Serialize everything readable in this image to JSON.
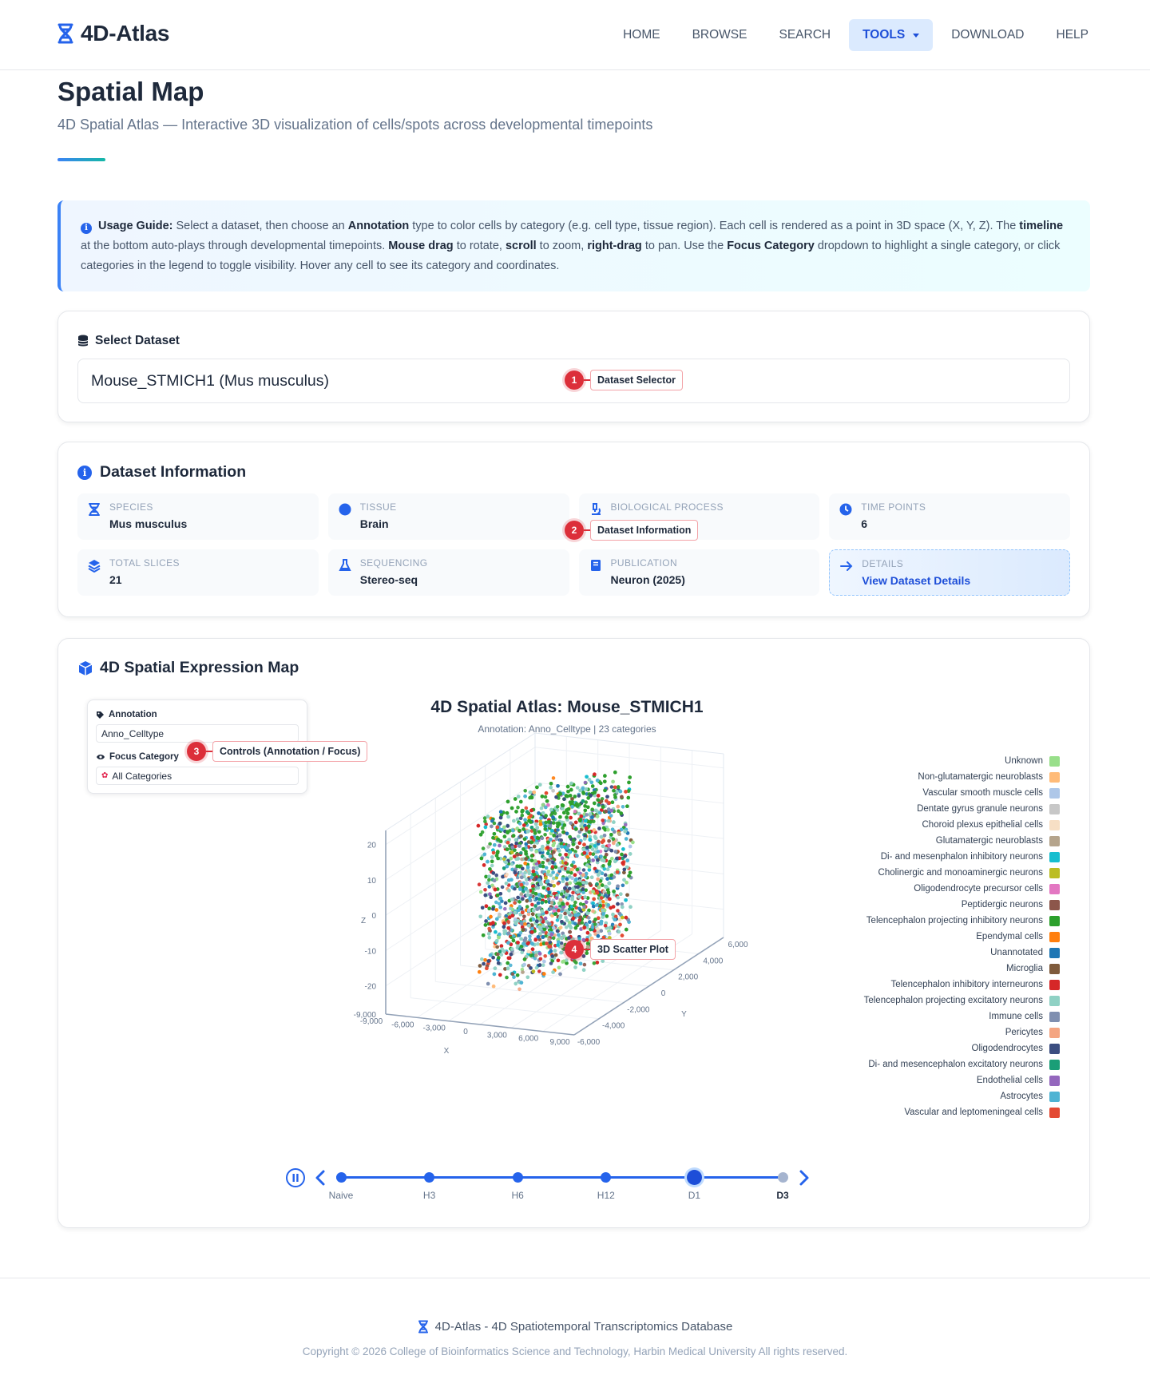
{
  "nav": {
    "brand": "4D-Atlas",
    "links": [
      {
        "label": "HOME"
      },
      {
        "label": "BROWSE"
      },
      {
        "label": "SEARCH"
      },
      {
        "label": "TOOLS",
        "active": true
      },
      {
        "label": "DOWNLOAD"
      },
      {
        "label": "HELP"
      }
    ]
  },
  "header": {
    "title": "Spatial Map",
    "subtitle": "4D Spatial Atlas — Interactive 3D visualization of cells/spots across developmental timepoints"
  },
  "guide": {
    "parts": [
      {
        "t": "Usage Guide:",
        "b": true
      },
      {
        "t": " Select a dataset, then choose an "
      },
      {
        "t": "Annotation",
        "b": true
      },
      {
        "t": " type to color cells by category (e.g. cell type, tissue region). Each cell is rendered as a point in 3D space (X, Y, Z). The "
      },
      {
        "t": "timeline",
        "b": true
      },
      {
        "t": " at the bottom auto-plays through developmental timepoints. "
      },
      {
        "t": "Mouse drag",
        "b": true
      },
      {
        "t": " to rotate, "
      },
      {
        "t": "scroll",
        "b": true
      },
      {
        "t": " to zoom, "
      },
      {
        "t": "right-drag",
        "b": true
      },
      {
        "t": " to pan. Use the "
      },
      {
        "t": "Focus Category",
        "b": true
      },
      {
        "t": " dropdown to highlight a single category, or click categories in the legend to toggle visibility. Hover any cell to see its category and coordinates."
      }
    ]
  },
  "select_dataset": {
    "title": "Select Dataset",
    "value": "Mouse_STMICH1 (Mus musculus)"
  },
  "dataset_info": {
    "title": "Dataset Information",
    "items": [
      {
        "label": "SPECIES",
        "value": "Mus musculus",
        "icon": "dna-icon"
      },
      {
        "label": "TISSUE",
        "value": "Brain",
        "icon": "brain-icon"
      },
      {
        "label": "BIOLOGICAL PROCESS",
        "value": "",
        "icon": "microscope-icon"
      },
      {
        "label": "TIME POINTS",
        "value": "6",
        "icon": "clock-icon"
      },
      {
        "label": "TOTAL SLICES",
        "value": "21",
        "icon": "layers-icon"
      },
      {
        "label": "SEQUENCING",
        "value": "Stereo-seq",
        "icon": "flask-icon"
      },
      {
        "label": "PUBLICATION",
        "value": "Neuron (2025)",
        "icon": "book-icon"
      },
      {
        "label": "DETAILS",
        "value": "View Dataset Details",
        "icon": "arrow-right-icon"
      }
    ]
  },
  "map": {
    "title": "4D Spatial Expression Map",
    "controls": {
      "annotation_label": "Annotation",
      "annotation_value": "Anno_Celltype",
      "focus_label": "Focus Category",
      "focus_value": "All Categories"
    }
  },
  "callouts": [
    {
      "num": "1",
      "label": "Dataset Selector"
    },
    {
      "num": "2",
      "label": "Dataset Information"
    },
    {
      "num": "3",
      "label": "Controls (Annotation / Focus)"
    },
    {
      "num": "4",
      "label": "3D Scatter Plot"
    }
  ],
  "chart_data": {
    "type": "scatter",
    "dimensions": 3,
    "title": "4D Spatial Atlas: Mouse_STMICH1",
    "subtitle": "Annotation: Anno_Celltype | 23 categories",
    "xlabel": "X",
    "ylabel": "Y",
    "zlabel": "Z",
    "x_ticks": [
      "-9,000",
      "-6,000",
      "-3,000",
      "0",
      "3,000",
      "6,000",
      "9,000"
    ],
    "y_ticks": [
      "-6,000",
      "-4,000",
      "-2,000",
      "0",
      "2,000",
      "4,000",
      "6,000"
    ],
    "z_ticks": [
      "20",
      "10",
      "0",
      "-10",
      "-20"
    ],
    "z_bottom_tick": "-9,000",
    "xlim": [
      -9000,
      9000
    ],
    "ylim": [
      -6000,
      6000
    ],
    "zlim": [
      -28,
      24
    ],
    "legend_position": "right",
    "categories": [
      {
        "name": "Unknown",
        "color": "#98df8a"
      },
      {
        "name": "Non-glutamatergic neuroblasts",
        "color": "#ffbb78"
      },
      {
        "name": "Vascular smooth muscle cells",
        "color": "#aec7e8"
      },
      {
        "name": "Dentate gyrus granule neurons",
        "color": "#c7c7c7"
      },
      {
        "name": "Choroid plexus epithelial cells",
        "color": "#f7dfc5"
      },
      {
        "name": "Glutamatergic neuroblasts",
        "color": "#b5a48c"
      },
      {
        "name": "Di- and mesenphalon inhibitory neurons",
        "color": "#17becf"
      },
      {
        "name": "Cholinergic and monoaminergic neurons",
        "color": "#bcbd22"
      },
      {
        "name": "Oligodendrocyte precursor cells",
        "color": "#e377c2"
      },
      {
        "name": "Peptidergic neurons",
        "color": "#8c564b"
      },
      {
        "name": "Telencephalon projecting inhibitory neurons",
        "color": "#2ca02c"
      },
      {
        "name": "Ependymal cells",
        "color": "#ff7f0e"
      },
      {
        "name": "Unannotated",
        "color": "#1f77b4"
      },
      {
        "name": "Microglia",
        "color": "#7f5b3c"
      },
      {
        "name": "Telencephalon inhibitory interneurons",
        "color": "#d62728"
      },
      {
        "name": "Telencephalon projecting excitatory neurons",
        "color": "#8fd1c4"
      },
      {
        "name": "Immune cells",
        "color": "#7f8fb0"
      },
      {
        "name": "Pericytes",
        "color": "#f4a582"
      },
      {
        "name": "Oligodendrocytes",
        "color": "#3b4d80"
      },
      {
        "name": "Di- and mesencephalon excitatory neurons",
        "color": "#1a9e77"
      },
      {
        "name": "Endothelial cells",
        "color": "#9467bd"
      },
      {
        "name": "Astrocytes",
        "color": "#4eb3d3"
      },
      {
        "name": "Vascular and leptomeningeal cells",
        "color": "#e34a33"
      }
    ],
    "timepoints": [
      {
        "label": "Naive"
      },
      {
        "label": "H3"
      },
      {
        "label": "H6"
      },
      {
        "label": "H12"
      },
      {
        "label": "D1",
        "current": true
      },
      {
        "label": "D3",
        "bold": true,
        "future": true
      }
    ]
  },
  "footer": {
    "line1": "4D-Atlas - 4D Spatiotemporal Transcriptomics Database",
    "line2": "Copyright © 2026 College of Bioinformatics Science and Technology, Harbin Medical University All rights reserved."
  }
}
